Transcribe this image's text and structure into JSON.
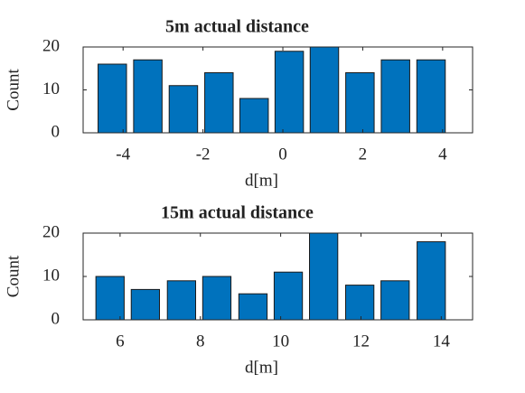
{
  "chart_data": [
    {
      "type": "bar",
      "title": "5m actual distance",
      "xlabel": "d[m]",
      "ylabel": "Count",
      "x": [
        -4.27,
        -3.38,
        -2.49,
        -1.6,
        -0.72,
        0.16,
        1.04,
        1.93,
        2.82,
        3.71
      ],
      "values": [
        16,
        17,
        11,
        14,
        8,
        19,
        20,
        14,
        17,
        17
      ],
      "color": "#0072bd",
      "xlim": [
        -5,
        4.75
      ],
      "xticks": [
        -4,
        -2,
        0,
        2,
        4
      ],
      "ylim": [
        0,
        20
      ],
      "yticks": [
        0,
        10,
        20
      ]
    },
    {
      "type": "bar",
      "title": "15m actual distance",
      "xlabel": "d[m]",
      "ylabel": "Count",
      "x": [
        5.75,
        6.63,
        7.53,
        8.41,
        9.31,
        10.19,
        11.07,
        11.97,
        12.85,
        13.75
      ],
      "values": [
        10,
        7,
        9,
        10,
        6,
        11,
        20,
        8,
        9,
        18
      ],
      "color": "#0072bd",
      "xlim": [
        5.08,
        14.78
      ],
      "xticks": [
        6,
        8,
        10,
        12,
        14
      ],
      "ylim": [
        0,
        20
      ],
      "yticks": [
        0,
        10,
        20
      ]
    }
  ]
}
